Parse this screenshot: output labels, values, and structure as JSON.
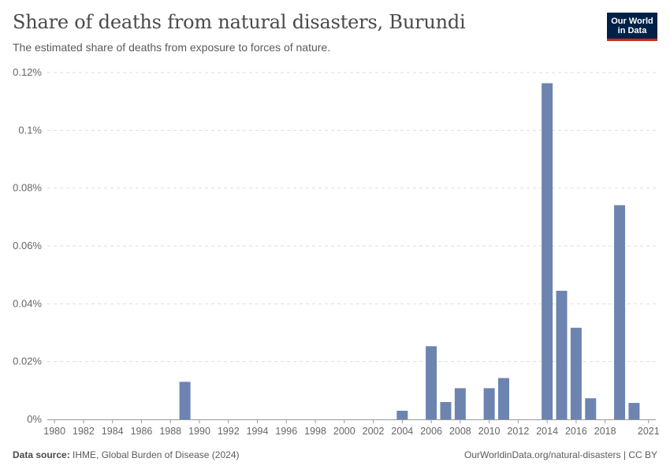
{
  "header": {
    "title": "Share of deaths from natural disasters, Burundi",
    "subtitle": "The estimated share of deaths from exposure to forces of nature."
  },
  "logo": {
    "line1": "Our World",
    "line2": "in Data",
    "bg": "#002147",
    "accent": "#ce261e"
  },
  "footer": {
    "source_label": "Data source:",
    "source_text": "IHME, Global Burden of Disease (2024)",
    "link_text": "OurWorldinData.org/natural-disasters | CC BY"
  },
  "colors": {
    "bar": "#6d84b0",
    "grid": "#dddddd",
    "axis": "#999999",
    "text": "#666666"
  },
  "chart_data": {
    "type": "bar",
    "title": "Share of deaths from natural disasters, Burundi",
    "xlabel": "",
    "ylabel": "",
    "ylim": [
      0,
      0.12
    ],
    "yticks": [
      {
        "value": 0,
        "label": "0%"
      },
      {
        "value": 0.02,
        "label": "0.02%"
      },
      {
        "value": 0.04,
        "label": "0.04%"
      },
      {
        "value": 0.06,
        "label": "0.06%"
      },
      {
        "value": 0.08,
        "label": "0.08%"
      },
      {
        "value": 0.1,
        "label": "0.1%"
      },
      {
        "value": 0.12,
        "label": "0.12%"
      }
    ],
    "xticks": [
      "1980",
      "1982",
      "1984",
      "1986",
      "1988",
      "1990",
      "1992",
      "1994",
      "1996",
      "1998",
      "2000",
      "2002",
      "2004",
      "2006",
      "2008",
      "2010",
      "2012",
      "2014",
      "2016",
      "2018",
      "2021"
    ],
    "categories": [
      1980,
      1981,
      1982,
      1983,
      1984,
      1985,
      1986,
      1987,
      1988,
      1989,
      1990,
      1991,
      1992,
      1993,
      1994,
      1995,
      1996,
      1997,
      1998,
      1999,
      2000,
      2001,
      2002,
      2003,
      2004,
      2005,
      2006,
      2007,
      2008,
      2009,
      2010,
      2011,
      2012,
      2013,
      2014,
      2015,
      2016,
      2017,
      2018,
      2019,
      2020,
      2021
    ],
    "values": [
      0,
      0,
      0,
      0,
      0,
      0,
      0,
      0,
      0,
      0.013,
      0,
      0,
      0,
      0,
      0,
      0,
      0,
      0,
      0,
      0,
      0,
      0,
      0,
      0,
      0.003,
      0,
      0.0253,
      0.006,
      0.0108,
      0,
      0.0108,
      0.0143,
      0,
      0,
      0.1163,
      0.0445,
      0.0317,
      0.0073,
      0,
      0.0741,
      0.0057,
      0
    ]
  }
}
